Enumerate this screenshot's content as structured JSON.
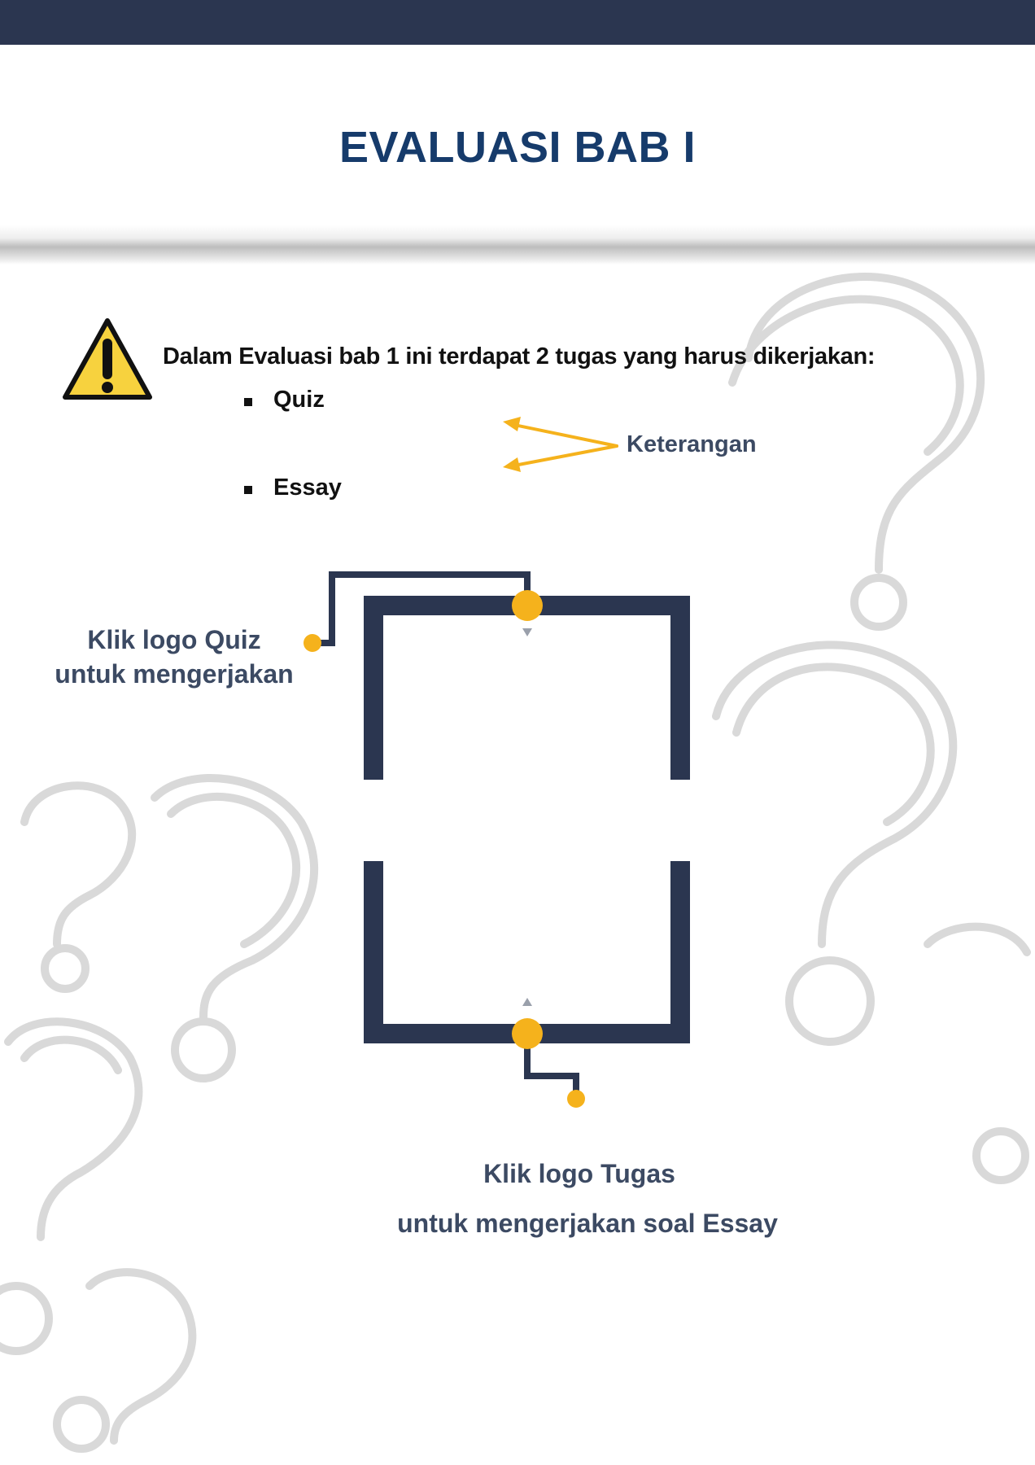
{
  "header": {
    "title": "EVALUASI BAB I"
  },
  "intro": {
    "text": "Dalam Evaluasi bab 1 ini terdapat 2 tugas yang harus dikerjakan:",
    "items": [
      "Quiz",
      "Essay"
    ],
    "legend_label": "Keterangan"
  },
  "quiz_instruction": {
    "line1": "Klik logo Quiz",
    "line2": "untuk mengerjakan"
  },
  "essay_instruction": {
    "line1": "Klik logo Tugas",
    "line2": "untuk mengerjakan soal Essay"
  },
  "colors": {
    "navy": "#2b3650",
    "title_blue": "#163b6b",
    "accent_yellow": "#f5b21c",
    "text_slate": "#3c4a63",
    "warning_yellow": "#f7d23e"
  },
  "icons": {
    "warning": "warning-triangle-icon",
    "bullet": "square-bullet-icon",
    "arrow": "arrow-icon",
    "background": "question-mark-icon"
  }
}
